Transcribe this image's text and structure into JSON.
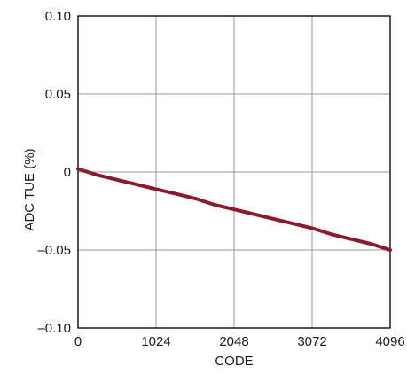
{
  "chart_data": {
    "type": "line",
    "title": "",
    "xlabel": "CODE",
    "ylabel": "ADC TUE (%)",
    "xlim": [
      0,
      4096
    ],
    "ylim": [
      -0.1,
      0.1
    ],
    "grid": true,
    "x_ticks": [
      0,
      1024,
      2048,
      3072,
      4096
    ],
    "x_tick_labels": [
      "0",
      "1024",
      "2048",
      "3072",
      "4096"
    ],
    "y_ticks": [
      0.1,
      0.05,
      0,
      -0.05,
      -0.1
    ],
    "y_tick_labels": [
      "0.10",
      "0.05",
      "0",
      "–0.05",
      "–0.10"
    ],
    "line_color": "#8b1a2f",
    "series": [
      {
        "x": [
          0,
          256,
          512,
          768,
          1024,
          1280,
          1536,
          1792,
          2048,
          2304,
          2560,
          2816,
          3072,
          3328,
          3584,
          3840,
          4096
        ],
        "values": [
          0.002,
          -0.002,
          -0.005,
          -0.008,
          -0.011,
          -0.014,
          -0.017,
          -0.021,
          -0.024,
          -0.027,
          -0.03,
          -0.033,
          -0.036,
          -0.04,
          -0.043,
          -0.046,
          -0.05
        ]
      }
    ]
  }
}
